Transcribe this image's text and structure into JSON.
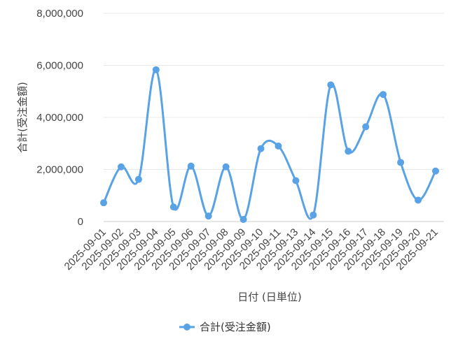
{
  "chart_data": {
    "type": "line",
    "xlabel": "日付 (日単位)",
    "ylabel": "合計(受注金額)",
    "ylim": [
      0,
      8000000
    ],
    "y_ticks": [
      "0",
      "2,000,000",
      "4,000,000",
      "6,000,000",
      "8,000,000"
    ],
    "categories": [
      "2025-09-01",
      "2025-09-02",
      "2025-09-03",
      "2025-09-04",
      "2025-09-05",
      "2025-09-06",
      "2025-09-07",
      "2025-09-08",
      "2025-09-09",
      "2025-09-10",
      "2025-09-11",
      "2025-09-13",
      "2025-09-14",
      "2025-09-15",
      "2025-09-16",
      "2025-09-17",
      "2025-09-18",
      "2025-09-19",
      "2025-09-20",
      "2025-09-21"
    ],
    "series": [
      {
        "name": "合計(受注金額)",
        "color": "#5aa2e6",
        "values": [
          720000,
          2100000,
          1620000,
          5830000,
          560000,
          2130000,
          210000,
          2100000,
          80000,
          2800000,
          2900000,
          1570000,
          250000,
          5250000,
          2700000,
          3640000,
          4880000,
          2270000,
          820000,
          1940000
        ]
      }
    ],
    "grid": true,
    "legend": "bottom"
  }
}
